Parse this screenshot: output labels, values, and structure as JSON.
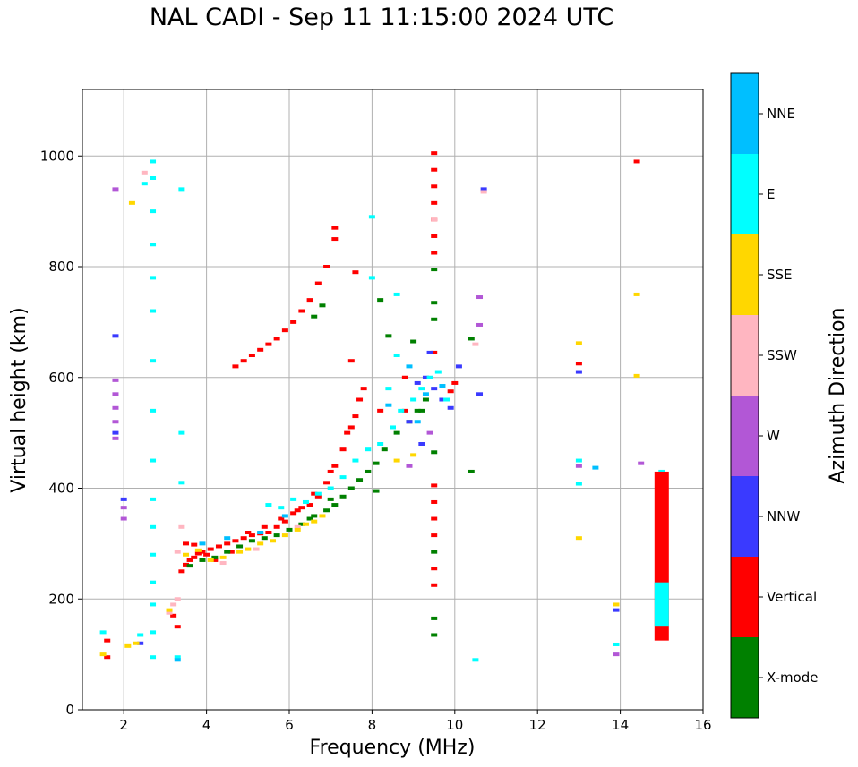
{
  "chart_data": {
    "type": "scatter",
    "title": "NAL CADI - Sep 11 11:15:00 2024 UTC",
    "xlabel": "Frequency (MHz)",
    "ylabel": "Virtual height (km)",
    "xlim": [
      1,
      16
    ],
    "ylim": [
      0,
      1120
    ],
    "xticks": [
      2,
      4,
      6,
      8,
      10,
      12,
      14,
      16
    ],
    "yticks": [
      0,
      200,
      400,
      600,
      800,
      1000
    ],
    "grid": true,
    "colorbar": {
      "label": "Azimuth Direction",
      "categories": [
        "X-mode",
        "Vertical",
        "NNW",
        "W",
        "SSW",
        "SSE",
        "E",
        "NNE"
      ],
      "colors": [
        "#008000",
        "#ff0000",
        "#3a3aff",
        "#b257d6",
        "#ffb6c1",
        "#ffd700",
        "#00ffff",
        "#00bfff"
      ]
    },
    "series": [
      {
        "name": "Vertical",
        "color": "#ff0000",
        "points": [
          [
            3.4,
            250
          ],
          [
            3.5,
            262
          ],
          [
            3.6,
            270
          ],
          [
            3.7,
            275
          ],
          [
            3.8,
            282
          ],
          [
            3.9,
            285
          ],
          [
            4.0,
            280
          ],
          [
            4.1,
            290
          ],
          [
            4.3,
            295
          ],
          [
            4.5,
            300
          ],
          [
            4.7,
            305
          ],
          [
            4.9,
            310
          ],
          [
            5.1,
            315
          ],
          [
            5.3,
            318
          ],
          [
            5.5,
            320
          ],
          [
            5.7,
            330
          ],
          [
            5.9,
            340
          ],
          [
            6.1,
            355
          ],
          [
            6.3,
            365
          ],
          [
            6.5,
            370
          ],
          [
            6.7,
            385
          ],
          [
            6.9,
            410
          ],
          [
            7.1,
            440
          ],
          [
            7.3,
            470
          ],
          [
            7.5,
            510
          ],
          [
            7.6,
            530
          ],
          [
            7.7,
            560
          ],
          [
            7.8,
            580
          ],
          [
            3.5,
            300
          ],
          [
            3.7,
            298
          ],
          [
            4.2,
            270
          ],
          [
            4.6,
            285
          ],
          [
            5.0,
            320
          ],
          [
            5.4,
            330
          ],
          [
            5.8,
            345
          ],
          [
            6.2,
            360
          ],
          [
            6.6,
            390
          ],
          [
            7.0,
            430
          ],
          [
            7.4,
            500
          ],
          [
            4.7,
            620
          ],
          [
            4.9,
            630
          ],
          [
            5.1,
            640
          ],
          [
            5.3,
            650
          ],
          [
            5.5,
            660
          ],
          [
            5.7,
            670
          ],
          [
            5.9,
            685
          ],
          [
            6.1,
            700
          ],
          [
            6.3,
            720
          ],
          [
            6.5,
            740
          ],
          [
            6.7,
            770
          ],
          [
            6.9,
            800
          ],
          [
            7.1,
            850
          ],
          [
            7.1,
            870
          ],
          [
            1.6,
            95
          ],
          [
            1.6,
            125
          ],
          [
            3.2,
            170
          ],
          [
            3.3,
            150
          ],
          [
            7.5,
            630
          ],
          [
            7.6,
            790
          ],
          [
            8.2,
            540
          ],
          [
            8.8,
            540
          ],
          [
            8.8,
            600
          ],
          [
            9.5,
            1005
          ],
          [
            9.5,
            975
          ],
          [
            9.5,
            945
          ],
          [
            9.5,
            915
          ],
          [
            9.5,
            885
          ],
          [
            9.5,
            855
          ],
          [
            9.5,
            825
          ],
          [
            9.5,
            645
          ],
          [
            9.5,
            405
          ],
          [
            9.5,
            375
          ],
          [
            9.5,
            345
          ],
          [
            9.5,
            315
          ],
          [
            9.5,
            255
          ],
          [
            9.5,
            225
          ],
          [
            9.9,
            575
          ],
          [
            10.0,
            590
          ],
          [
            14.4,
            990
          ],
          [
            13.0,
            625
          ]
        ]
      },
      {
        "name": "X-mode",
        "color": "#008000",
        "points": [
          [
            3.6,
            260
          ],
          [
            3.9,
            270
          ],
          [
            4.2,
            275
          ],
          [
            4.5,
            285
          ],
          [
            4.8,
            295
          ],
          [
            5.1,
            305
          ],
          [
            5.4,
            310
          ],
          [
            5.7,
            315
          ],
          [
            6.0,
            325
          ],
          [
            6.3,
            335
          ],
          [
            6.6,
            350
          ],
          [
            6.9,
            360
          ],
          [
            7.1,
            370
          ],
          [
            7.3,
            385
          ],
          [
            7.5,
            400
          ],
          [
            7.7,
            415
          ],
          [
            7.9,
            430
          ],
          [
            8.1,
            445
          ],
          [
            8.3,
            470
          ],
          [
            8.6,
            500
          ],
          [
            8.9,
            520
          ],
          [
            9.1,
            540
          ],
          [
            9.3,
            560
          ],
          [
            6.6,
            710
          ],
          [
            6.8,
            730
          ],
          [
            8.2,
            740
          ],
          [
            8.4,
            675
          ],
          [
            9.0,
            665
          ],
          [
            9.2,
            540
          ],
          [
            9.5,
            795
          ],
          [
            9.5,
            735
          ],
          [
            9.5,
            705
          ],
          [
            9.5,
            465
          ],
          [
            9.5,
            285
          ],
          [
            9.5,
            165
          ],
          [
            9.5,
            135
          ],
          [
            10.4,
            670
          ],
          [
            10.4,
            430
          ],
          [
            8.1,
            395
          ],
          [
            7.0,
            380
          ],
          [
            6.5,
            345
          ]
        ]
      },
      {
        "name": "NNW",
        "color": "#3a3aff",
        "points": [
          [
            1.8,
            675
          ],
          [
            1.8,
            500
          ],
          [
            2.0,
            380
          ],
          [
            9.1,
            590
          ],
          [
            9.3,
            600
          ],
          [
            9.5,
            580
          ],
          [
            9.7,
            560
          ],
          [
            9.9,
            545
          ],
          [
            10.1,
            620
          ],
          [
            10.6,
            570
          ],
          [
            10.7,
            940
          ],
          [
            9.4,
            645
          ],
          [
            8.9,
            520
          ],
          [
            9.2,
            480
          ],
          [
            13.0,
            610
          ],
          [
            13.9,
            180
          ],
          [
            2.4,
            120
          ]
        ]
      },
      {
        "name": "W",
        "color": "#b257d6",
        "points": [
          [
            1.8,
            595
          ],
          [
            1.8,
            570
          ],
          [
            1.8,
            545
          ],
          [
            1.8,
            520
          ],
          [
            1.8,
            490
          ],
          [
            2.0,
            365
          ],
          [
            2.0,
            345
          ],
          [
            1.8,
            940
          ],
          [
            13.0,
            440
          ],
          [
            13.9,
            100
          ],
          [
            14.5,
            445
          ],
          [
            10.6,
            745
          ],
          [
            10.6,
            695
          ],
          [
            8.9,
            440
          ],
          [
            9.4,
            500
          ]
        ]
      },
      {
        "name": "SSW",
        "color": "#ffb6c1",
        "points": [
          [
            3.2,
            190
          ],
          [
            3.1,
            175
          ],
          [
            3.3,
            200
          ],
          [
            2.5,
            970
          ],
          [
            9.5,
            885
          ],
          [
            10.5,
            660
          ],
          [
            6.2,
            330
          ],
          [
            5.2,
            290
          ],
          [
            4.4,
            265
          ],
          [
            3.3,
            285
          ],
          [
            3.4,
            330
          ],
          [
            10.7,
            935
          ]
        ]
      },
      {
        "name": "SSE",
        "color": "#ffd700",
        "points": [
          [
            3.5,
            280
          ],
          [
            3.8,
            288
          ],
          [
            4.1,
            270
          ],
          [
            4.4,
            275
          ],
          [
            4.8,
            285
          ],
          [
            5.0,
            290
          ],
          [
            5.3,
            300
          ],
          [
            5.6,
            305
          ],
          [
            5.9,
            315
          ],
          [
            6.2,
            325
          ],
          [
            6.4,
            335
          ],
          [
            6.6,
            340
          ],
          [
            6.8,
            350
          ],
          [
            3.1,
            180
          ],
          [
            2.3,
            120
          ],
          [
            2.1,
            115
          ],
          [
            1.5,
            100
          ],
          [
            13.0,
            662
          ],
          [
            13.0,
            310
          ],
          [
            14.4,
            750
          ],
          [
            14.4,
            603
          ],
          [
            13.9,
            190
          ],
          [
            8.6,
            450
          ],
          [
            9.0,
            460
          ],
          [
            2.2,
            915
          ]
        ]
      },
      {
        "name": "E",
        "color": "#00ffff",
        "points": [
          [
            2.7,
            990
          ],
          [
            2.7,
            960
          ],
          [
            2.7,
            900
          ],
          [
            2.7,
            840
          ],
          [
            2.7,
            780
          ],
          [
            2.7,
            720
          ],
          [
            2.7,
            630
          ],
          [
            2.7,
            540
          ],
          [
            2.7,
            450
          ],
          [
            2.7,
            380
          ],
          [
            2.7,
            330
          ],
          [
            2.7,
            280
          ],
          [
            2.7,
            230
          ],
          [
            2.7,
            190
          ],
          [
            2.7,
            140
          ],
          [
            2.7,
            95
          ],
          [
            2.5,
            950
          ],
          [
            3.4,
            940
          ],
          [
            3.4,
            500
          ],
          [
            3.4,
            410
          ],
          [
            5.5,
            370
          ],
          [
            5.8,
            365
          ],
          [
            6.1,
            380
          ],
          [
            6.4,
            375
          ],
          [
            6.7,
            390
          ],
          [
            7.0,
            400
          ],
          [
            7.3,
            420
          ],
          [
            7.6,
            450
          ],
          [
            7.9,
            470
          ],
          [
            8.2,
            480
          ],
          [
            8.5,
            510
          ],
          [
            8.7,
            540
          ],
          [
            9.0,
            560
          ],
          [
            9.2,
            580
          ],
          [
            9.4,
            600
          ],
          [
            9.6,
            610
          ],
          [
            9.8,
            560
          ],
          [
            8.0,
            890
          ],
          [
            8.0,
            780
          ],
          [
            8.6,
            750
          ],
          [
            8.6,
            640
          ],
          [
            8.4,
            580
          ],
          [
            13.0,
            450
          ],
          [
            13.0,
            408
          ],
          [
            13.9,
            118
          ],
          [
            10.5,
            90
          ],
          [
            1.5,
            140
          ],
          [
            2.4,
            135
          ],
          [
            3.3,
            95
          ],
          [
            15.0,
            430
          ]
        ]
      },
      {
        "name": "NNE",
        "color": "#00bfff",
        "points": [
          [
            3.3,
            90
          ],
          [
            3.9,
            300
          ],
          [
            4.5,
            310
          ],
          [
            5.3,
            320
          ],
          [
            5.9,
            350
          ],
          [
            8.4,
            550
          ],
          [
            8.9,
            620
          ],
          [
            9.3,
            570
          ],
          [
            13.4,
            437
          ],
          [
            9.1,
            520
          ],
          [
            9.7,
            585
          ]
        ]
      }
    ],
    "bars": [
      {
        "series": "Vertical",
        "x": 15.0,
        "y0": 125,
        "y1": 430
      },
      {
        "series": "E",
        "x": 15.0,
        "y0": 150,
        "y1": 230
      }
    ]
  }
}
